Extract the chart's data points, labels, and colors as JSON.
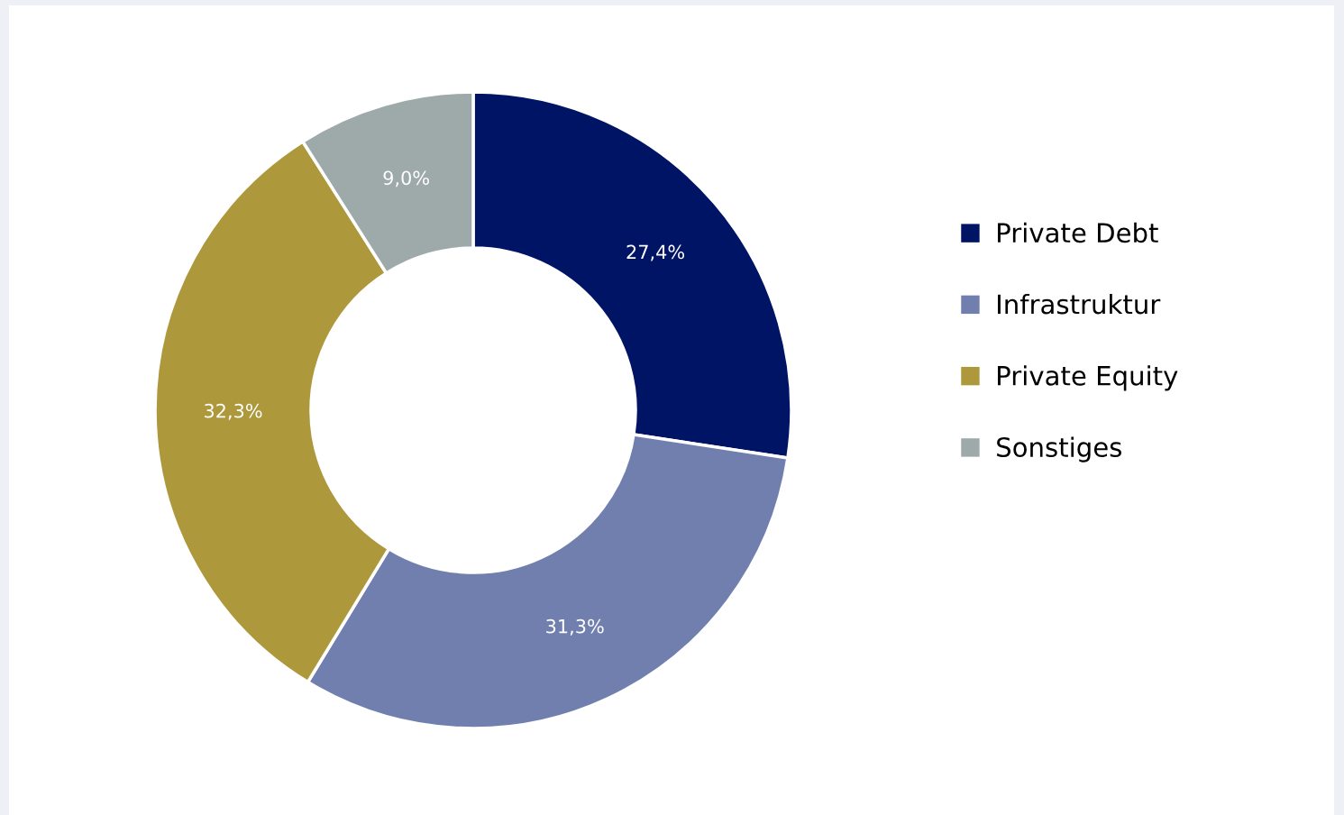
{
  "chart_data": {
    "type": "donut",
    "categories": [
      "Private Debt",
      "Infrastruktur",
      "Private Equity",
      "Sonstiges"
    ],
    "values": [
      27.4,
      31.3,
      32.3,
      9.0
    ],
    "colors": [
      "#001466",
      "#717fae",
      "#ae983c",
      "#9eaaaa"
    ],
    "value_labels": [
      "27,4%",
      "31,3%",
      "32,3%",
      "9,0%"
    ],
    "legend": "right"
  }
}
